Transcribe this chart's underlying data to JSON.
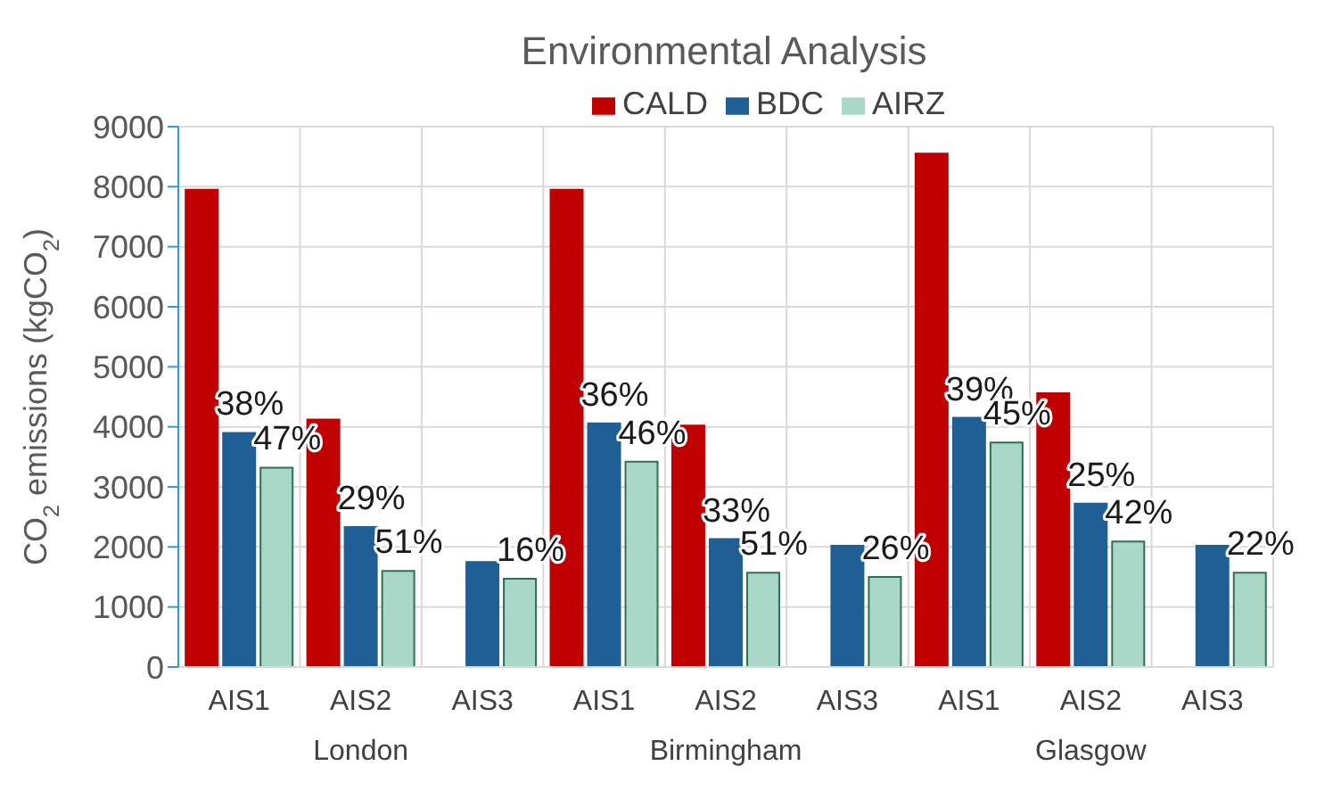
{
  "chart_data": {
    "type": "bar",
    "title": "Environmental Analysis",
    "ylabel": "CO$_{2}$ emissions (kgCO$_{2}$)",
    "categories": [
      "AIS1",
      "AIS2",
      "AIS3",
      "AIS1",
      "AIS2",
      "AIS3",
      "AIS1",
      "AIS2",
      "AIS3"
    ],
    "series": [
      {
        "name": "CALD",
        "color": "#c00000",
        "values": [
          7950,
          4120,
          null,
          7950,
          4020,
          null,
          8550,
          4560,
          null
        ]
      },
      {
        "name": "BDC",
        "color": "#1f5f96",
        "values": [
          3900,
          2330,
          1750,
          4060,
          2130,
          2020,
          4150,
          2720,
          2020
        ]
      },
      {
        "name": "AIRZ",
        "color": "#a9d8c8",
        "values": [
          3320,
          1600,
          1470,
          3420,
          1570,
          1500,
          3740,
          2090,
          1570
        ]
      }
    ],
    "annotations": [
      "38%",
      "47%",
      "29%",
      "51%",
      "16%",
      "36%",
      "46%",
      "33%",
      "51%",
      "26%",
      "39%",
      "45%",
      "25%",
      "42%",
      "22%",
      "London",
      "Birmingham",
      "Glasgow"
    ],
    "ylim": [
      0,
      9000
    ],
    "yticks": [
      0,
      1000,
      2000,
      3000,
      4000,
      5000,
      6000,
      7000,
      8000,
      9000
    ],
    "grid": true,
    "legend": "top"
  }
}
